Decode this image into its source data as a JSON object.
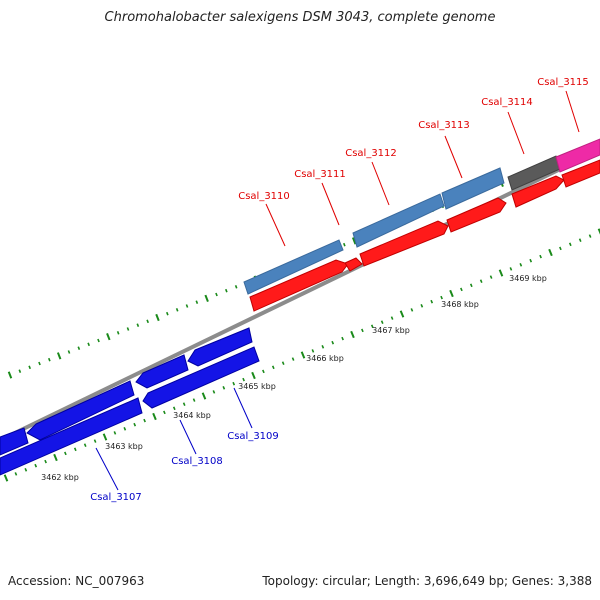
{
  "title": "Chromohalobacter salexigens DSM 3043, complete genome",
  "accession": "Accession: NC_007963",
  "summary": "Topology: circular; Length: 3,696,649 bp; Genes: 3,388",
  "colors": {
    "backbone": "#8c8c8c",
    "tick": "#1a8a1a",
    "forward_label": "#e00000",
    "reverse_label": "#0000c8",
    "cds_red": "#ff1a1a",
    "cds_steel": "#4a82bd",
    "cds_blue": "#1414e6",
    "cds_gray": "#5a5a5a",
    "cds_magenta": "#ee2aa6"
  },
  "kbp_ticks": [
    "3462 kbp",
    "3463 kbp",
    "3464 kbp",
    "3465 kbp",
    "3466 kbp",
    "3467 kbp",
    "3468 kbp",
    "3469 kbp"
  ],
  "gene_labels_forward": [
    "Csal_3110",
    "Csal_3111",
    "Csal_3112",
    "Csal_3113",
    "Csal_3114",
    "Csal_3115"
  ],
  "gene_labels_reverse": [
    "Csal_3107",
    "Csal_3108",
    "Csal_3109"
  ]
}
